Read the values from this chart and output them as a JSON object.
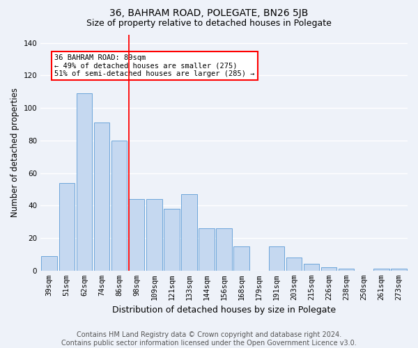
{
  "title": "36, BAHRAM ROAD, POLEGATE, BN26 5JB",
  "subtitle": "Size of property relative to detached houses in Polegate",
  "xlabel": "Distribution of detached houses by size in Polegate",
  "ylabel": "Number of detached properties",
  "categories": [
    "39sqm",
    "51sqm",
    "62sqm",
    "74sqm",
    "86sqm",
    "98sqm",
    "109sqm",
    "121sqm",
    "133sqm",
    "144sqm",
    "156sqm",
    "168sqm",
    "179sqm",
    "191sqm",
    "203sqm",
    "215sqm",
    "226sqm",
    "238sqm",
    "250sqm",
    "261sqm",
    "273sqm"
  ],
  "values": [
    9,
    54,
    109,
    91,
    80,
    44,
    44,
    38,
    47,
    26,
    26,
    15,
    0,
    15,
    8,
    4,
    2,
    1,
    0,
    1,
    1
  ],
  "bar_color": "#c5d8f0",
  "bar_edge_color": "#5b9bd5",
  "vline_index": 5,
  "annotation_text": "36 BAHRAM ROAD: 89sqm\n← 49% of detached houses are smaller (275)\n51% of semi-detached houses are larger (285) →",
  "annotation_box_color": "white",
  "annotation_box_edge_color": "red",
  "vline_color": "red",
  "ylim": [
    0,
    145
  ],
  "yticks": [
    0,
    20,
    40,
    60,
    80,
    100,
    120,
    140
  ],
  "footer_text": "Contains HM Land Registry data © Crown copyright and database right 2024.\nContains public sector information licensed under the Open Government Licence v3.0.",
  "background_color": "#eef2f9",
  "grid_color": "white",
  "title_fontsize": 10,
  "subtitle_fontsize": 9,
  "xlabel_fontsize": 9,
  "ylabel_fontsize": 8.5,
  "tick_fontsize": 7.5,
  "annotation_fontsize": 7.5,
  "footer_fontsize": 7
}
